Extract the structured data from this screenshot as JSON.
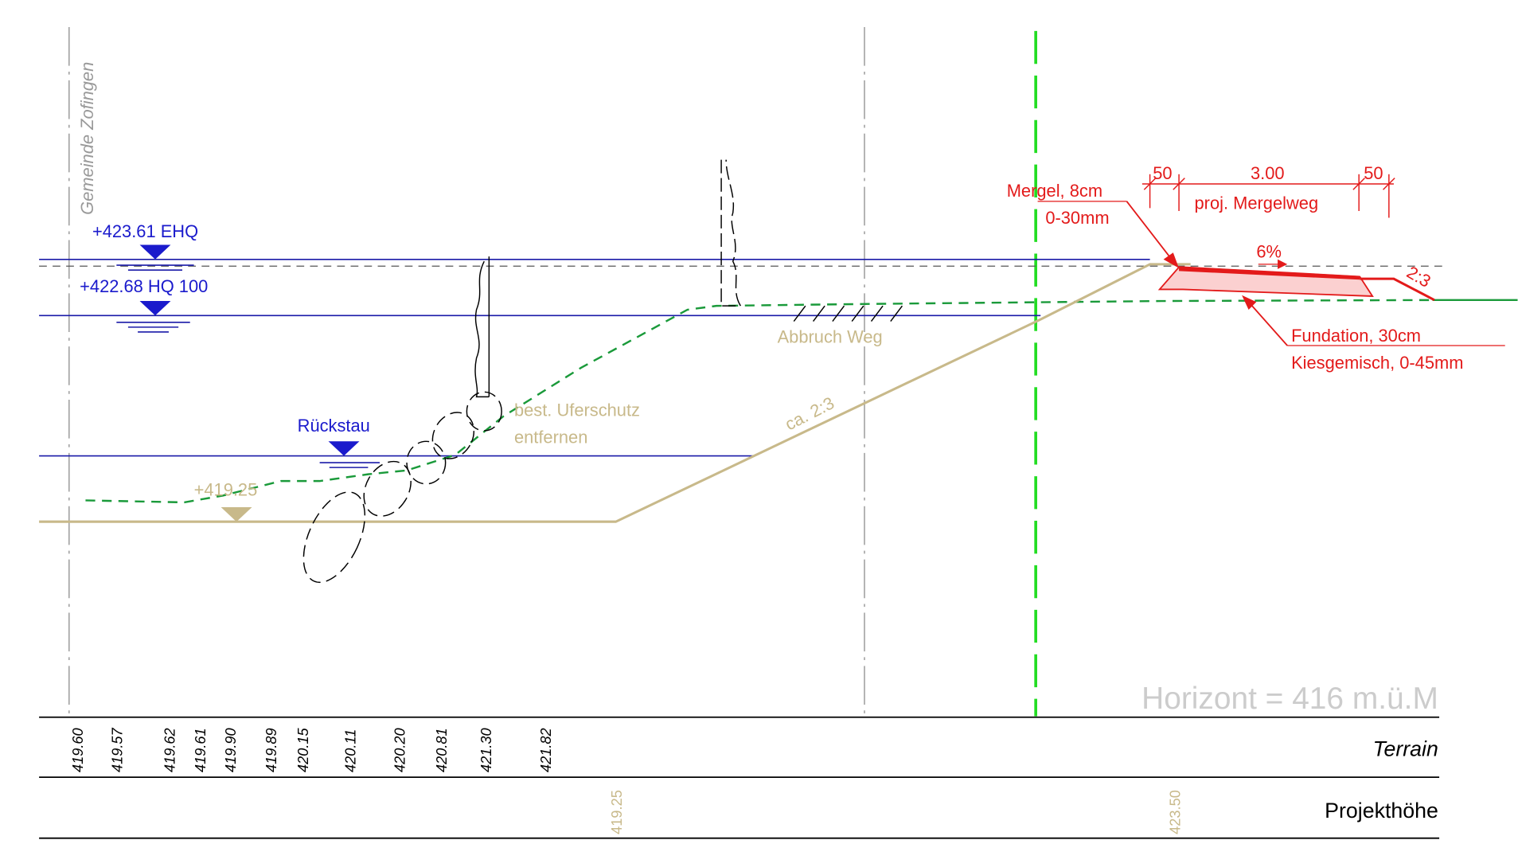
{
  "boundary": "Gemeinde Zofingen",
  "levels": {
    "ehq": "+423.61 EHQ",
    "hq100": "+422.68 HQ 100",
    "rueckstau": "Rückstau",
    "sohle": "+419.25"
  },
  "annotations": {
    "uferschutz_1": "best. Uferschutz",
    "uferschutz_2": "entfernen",
    "abbruch": "Abbruch Weg",
    "slope_left": "ca. 2:3",
    "mergel_1": "Mergel, 8cm",
    "mergel_2": "0-30mm",
    "dim_left": "50",
    "dim_mid": "3.00",
    "dim_right": "50",
    "dim_caption": "proj. Mergelweg",
    "gradient": "6%",
    "slope_right": "2:3",
    "fundation_1": "Fundation, 30cm",
    "fundation_2": "Kiesgemisch, 0-45mm",
    "horizont": "Horizont = 416 m.ü.M"
  },
  "table": {
    "terrain_label": "Terrain",
    "terrain_values": [
      "419.60",
      "419.57",
      "419.62",
      "419.61",
      "419.90",
      "419.89",
      "420.15",
      "420.11",
      "420.20",
      "420.81",
      "421.30",
      "421.82"
    ],
    "project_label": "Projekthöhe",
    "project_values": [
      "419.25",
      "423.50"
    ]
  }
}
